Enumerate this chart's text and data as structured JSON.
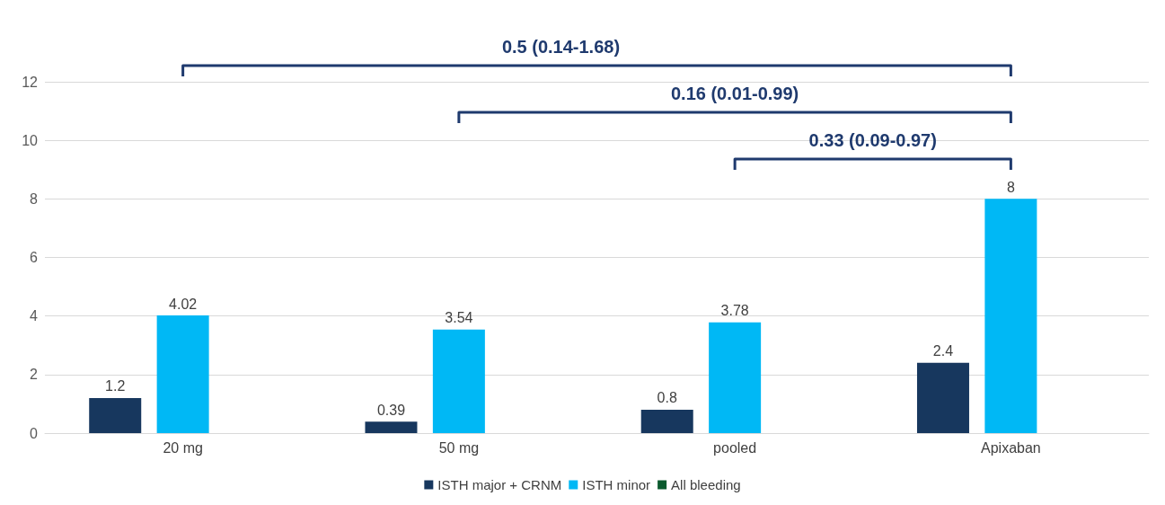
{
  "chart_data": {
    "type": "bar",
    "categories": [
      "20 mg",
      "50 mg",
      "pooled",
      "Apixaban"
    ],
    "series": [
      {
        "name": "ISTH major + CRNM",
        "color": "#17375e",
        "values": [
          1.2,
          0.39,
          0.8,
          2.4
        ]
      },
      {
        "name": "ISTH minor",
        "color": "#00b8f5",
        "values": [
          4.02,
          3.54,
          3.78,
          8
        ]
      },
      {
        "name": "All bleeding",
        "color": "#0b5a2e",
        "values": [
          null,
          null,
          null,
          null
        ]
      }
    ],
    "ylim": [
      0,
      12
    ],
    "yticks": [
      0,
      2,
      4,
      6,
      8,
      10,
      12
    ],
    "grid": "y",
    "legend": "bottom",
    "data_labels": true,
    "annotations": [
      "0.5 (0.14-1.68)",
      "0.16 (0.01-0.99)",
      "0.33 (0.09-0.97)"
    ]
  }
}
